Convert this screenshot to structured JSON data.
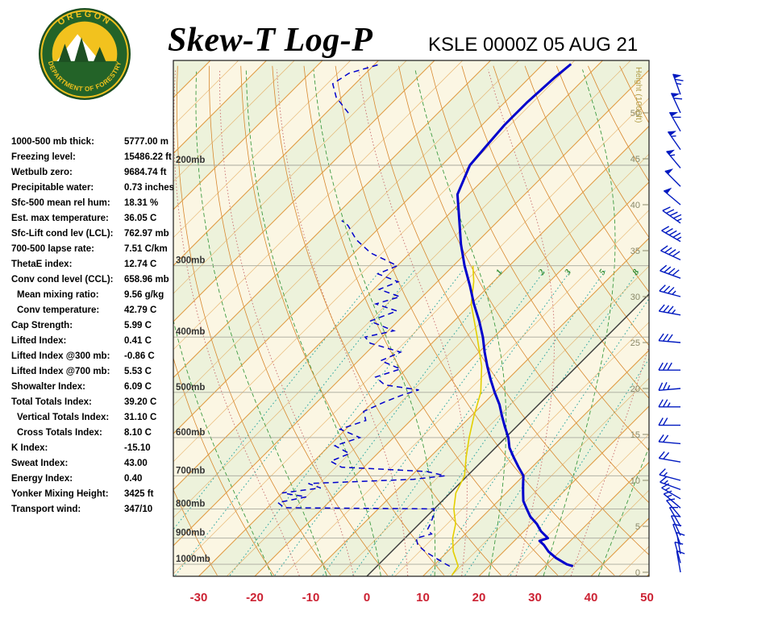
{
  "header": {
    "title": "Skew-T Log-P",
    "station_line": "KSLE 0000Z 05 AUG 21",
    "logo_top": "OREGON",
    "logo_bottom": "DEPARTMENT OF FORESTRY"
  },
  "stats": [
    {
      "label": "1000-500 mb thick:",
      "value": "5777.00 m",
      "indent": false
    },
    {
      "label": "Freezing level:",
      "value": "15486.22 ft",
      "indent": false
    },
    {
      "label": "Wetbulb zero:",
      "value": "9684.74 ft",
      "indent": false
    },
    {
      "label": "Precipitable water:",
      "value": "0.73 inches",
      "indent": false
    },
    {
      "label": "Sfc-500 mean rel hum:",
      "value": "18.31 %",
      "indent": false
    },
    {
      "label": "Est. max temperature:",
      "value": "36.05 C",
      "indent": false
    },
    {
      "label": "Sfc-Lift cond lev (LCL):",
      "value": "762.97 mb",
      "indent": false
    },
    {
      "label": "700-500 lapse rate:",
      "value": "7.51 C/km",
      "indent": false
    },
    {
      "label": "ThetaE index:",
      "value": "12.74 C",
      "indent": false
    },
    {
      "label": "Conv cond level (CCL):",
      "value": "658.96 mb",
      "indent": false
    },
    {
      "label": "Mean mixing ratio:",
      "value": "9.56 g/kg",
      "indent": true
    },
    {
      "label": "Conv temperature:",
      "value": "42.79 C",
      "indent": true
    },
    {
      "label": "Cap Strength:",
      "value": "5.99 C",
      "indent": false
    },
    {
      "label": "Lifted Index:",
      "value": "0.41 C",
      "indent": false
    },
    {
      "label": "Lifted Index @300 mb:",
      "value": "-0.86 C",
      "indent": false
    },
    {
      "label": "Lifted Index @700 mb:",
      "value": "5.53 C",
      "indent": false
    },
    {
      "label": "Showalter Index:",
      "value": "6.09 C",
      "indent": false
    },
    {
      "label": "Total Totals Index:",
      "value": "39.20 C",
      "indent": false
    },
    {
      "label": "Vertical Totals Index:",
      "value": "31.10 C",
      "indent": true
    },
    {
      "label": "Cross Totals Index:",
      "value": "8.10 C",
      "indent": true
    },
    {
      "label": "K Index:",
      "value": "-15.10",
      "indent": false
    },
    {
      "label": "Sweat Index:",
      "value": "43.00",
      "indent": false
    },
    {
      "label": "Energy Index:",
      "value": "0.40",
      "indent": false
    },
    {
      "label": "Yonker Mixing Height:",
      "value": "3425 ft",
      "indent": false
    },
    {
      "label": "Transport wind:",
      "value": "347/10",
      "indent": false
    }
  ],
  "chart_data": {
    "type": "skewt-log-p",
    "units": {
      "pressure": "mb",
      "temperature": "C",
      "height": "1000 ft",
      "wind": "kt"
    },
    "x_axis_ticks_c": [
      -30,
      -20,
      -10,
      0,
      10,
      20,
      30,
      40,
      50
    ],
    "pressure_labels": [
      {
        "p": 200,
        "label": "200mb"
      },
      {
        "p": 300,
        "label": "300mb"
      },
      {
        "p": 400,
        "label": "400mb"
      },
      {
        "p": 500,
        "label": "500mb"
      },
      {
        "p": 600,
        "label": "600mb"
      },
      {
        "p": 700,
        "label": "700mb"
      },
      {
        "p": 800,
        "label": "800mb"
      },
      {
        "p": 900,
        "label": "900mb"
      },
      {
        "p": 1000,
        "label": "1000mb"
      }
    ],
    "height_ticks_kft": [
      50,
      45,
      40,
      35,
      30,
      25,
      20,
      15,
      10,
      5,
      0
    ],
    "height_axis_label": "Height (1000ft)",
    "mixing_ratio_lines_gkg": [
      0.1,
      0.2,
      0.5,
      1,
      2,
      3,
      5,
      8,
      12,
      20
    ],
    "mixing_ratio_labeled": [
      1,
      2,
      3,
      5,
      8
    ],
    "colors": {
      "temperature": "#0000cc",
      "dewpoint": "#0000cc",
      "wetbulb": "#e3cf00",
      "isotherm": "#e09a40",
      "dry_adiabat": "#d8882f",
      "moist_adiabat": "#3d9a40",
      "moist_adiabat_alt": "#cc7777",
      "mixing_ratio": "#2aa5a0",
      "zero_isotherm": "#3a3a3a",
      "band": "#edf2db",
      "background": "#fbf6e3",
      "axis_temp_labels": "#cc2233",
      "wind_barb": "#0019c0",
      "pressure_label": "#333333",
      "height_label": "#8a8868",
      "mixing_label": "#2e8b2e"
    },
    "series": {
      "temperature": {
        "name": "Temperature",
        "points": [
          [
            1008,
            35
          ],
          [
            1000,
            33.5
          ],
          [
            975,
            30.5
          ],
          [
            950,
            28
          ],
          [
            925,
            26
          ],
          [
            910,
            24.5
          ],
          [
            900,
            25.5
          ],
          [
            875,
            23
          ],
          [
            850,
            21
          ],
          [
            825,
            18.5
          ],
          [
            800,
            16.5
          ],
          [
            775,
            14.5
          ],
          [
            750,
            13
          ],
          [
            725,
            11.5
          ],
          [
            700,
            10
          ],
          [
            675,
            7.5
          ],
          [
            650,
            5
          ],
          [
            625,
            2.5
          ],
          [
            600,
            0.5
          ],
          [
            575,
            -2
          ],
          [
            550,
            -4.5
          ],
          [
            525,
            -7
          ],
          [
            500,
            -10
          ],
          [
            475,
            -13
          ],
          [
            450,
            -16
          ],
          [
            425,
            -19
          ],
          [
            400,
            -22
          ],
          [
            375,
            -25.5
          ],
          [
            350,
            -29.5
          ],
          [
            325,
            -33.5
          ],
          [
            300,
            -38
          ],
          [
            275,
            -42.5
          ],
          [
            250,
            -47
          ],
          [
            225,
            -52
          ],
          [
            200,
            -55
          ],
          [
            185,
            -55.5
          ],
          [
            170,
            -56
          ],
          [
            155,
            -56
          ],
          [
            140,
            -55.5
          ],
          [
            133,
            -55
          ]
        ]
      },
      "dewpoint": {
        "name": "Dewpoint",
        "points": [
          [
            1008,
            13
          ],
          [
            1000,
            12
          ],
          [
            975,
            9
          ],
          [
            950,
            6
          ],
          [
            925,
            3.5
          ],
          [
            900,
            2
          ],
          [
            885,
            4
          ],
          [
            870,
            2.5
          ],
          [
            850,
            2
          ],
          [
            820,
            1
          ],
          [
            800,
            0
          ],
          [
            796,
            -27
          ],
          [
            780,
            -29
          ],
          [
            762,
            -25
          ],
          [
            750,
            -30
          ],
          [
            735,
            -24
          ],
          [
            722,
            -27
          ],
          [
            710,
            -9
          ],
          [
            700,
            -4
          ],
          [
            688,
            -8
          ],
          [
            676,
            -24
          ],
          [
            660,
            -27
          ],
          [
            640,
            -25
          ],
          [
            620,
            -29
          ],
          [
            600,
            -26
          ],
          [
            580,
            -31
          ],
          [
            560,
            -28
          ],
          [
            540,
            -30
          ],
          [
            520,
            -28
          ],
          [
            505,
            -26
          ],
          [
            495,
            -24
          ],
          [
            485,
            -31
          ],
          [
            470,
            -34
          ],
          [
            455,
            -31
          ],
          [
            440,
            -36
          ],
          [
            425,
            -34
          ],
          [
            410,
            -41
          ],
          [
            400,
            -43
          ],
          [
            390,
            -39
          ],
          [
            375,
            -45
          ],
          [
            360,
            -42
          ],
          [
            350,
            -47
          ],
          [
            340,
            -44
          ],
          [
            330,
            -49
          ],
          [
            320,
            -47
          ],
          [
            310,
            -52
          ],
          [
            300,
            -50
          ],
          [
            285,
            -57
          ],
          [
            270,
            -62
          ],
          [
            255,
            -66
          ],
          [
            250,
            -68
          ]
        ]
      },
      "dewpoint_upper": {
        "name": "Dewpoint (upper segment)",
        "points": [
          [
            162,
            -86
          ],
          [
            152,
            -91
          ],
          [
            144,
            -94
          ],
          [
            138,
            -93
          ],
          [
            133,
            -89
          ]
        ]
      },
      "wetbulb": {
        "name": "Wet-bulb / parcel trace",
        "points": [
          [
            1045,
            15
          ],
          [
            1008,
            14.5
          ],
          [
            950,
            11
          ],
          [
            900,
            8.5
          ],
          [
            850,
            6.5
          ],
          [
            800,
            3.5
          ],
          [
            750,
            1
          ],
          [
            700,
            -0.5
          ],
          [
            650,
            -3.5
          ],
          [
            600,
            -6.5
          ],
          [
            550,
            -9.5
          ],
          [
            500,
            -12.5
          ],
          [
            450,
            -17
          ],
          [
            400,
            -23
          ],
          [
            350,
            -30
          ],
          [
            320,
            -33.5
          ],
          [
            300,
            -36.5
          ]
        ]
      }
    },
    "wind_barbs": [
      {
        "h_kft": 0,
        "dir": 350,
        "spd": 10
      },
      {
        "h_kft": 1,
        "dir": 345,
        "spd": 10
      },
      {
        "h_kft": 2,
        "dir": 350,
        "spd": 10
      },
      {
        "h_kft": 3,
        "dir": 340,
        "spd": 10
      },
      {
        "h_kft": 4,
        "dir": 335,
        "spd": 10
      },
      {
        "h_kft": 5,
        "dir": 330,
        "spd": 10
      },
      {
        "h_kft": 6,
        "dir": 320,
        "spd": 10
      },
      {
        "h_kft": 7,
        "dir": 310,
        "spd": 15
      },
      {
        "h_kft": 8,
        "dir": 300,
        "spd": 15
      },
      {
        "h_kft": 9,
        "dir": 290,
        "spd": 15
      },
      {
        "h_kft": 10,
        "dir": 285,
        "spd": 15
      },
      {
        "h_kft": 12,
        "dir": 280,
        "spd": 20
      },
      {
        "h_kft": 14,
        "dir": 275,
        "spd": 20
      },
      {
        "h_kft": 16,
        "dir": 270,
        "spd": 20
      },
      {
        "h_kft": 18,
        "dir": 270,
        "spd": 25
      },
      {
        "h_kft": 20,
        "dir": 265,
        "spd": 25
      },
      {
        "h_kft": 22,
        "dir": 270,
        "spd": 30
      },
      {
        "h_kft": 25,
        "dir": 275,
        "spd": 30
      },
      {
        "h_kft": 28,
        "dir": 280,
        "spd": 35
      },
      {
        "h_kft": 30,
        "dir": 285,
        "spd": 35
      },
      {
        "h_kft": 32,
        "dir": 290,
        "spd": 40
      },
      {
        "h_kft": 34,
        "dir": 295,
        "spd": 40
      },
      {
        "h_kft": 36,
        "dir": 300,
        "spd": 45
      },
      {
        "h_kft": 38,
        "dir": 305,
        "spd": 45
      },
      {
        "h_kft": 40,
        "dir": 310,
        "spd": 50
      },
      {
        "h_kft": 42,
        "dir": 315,
        "spd": 50
      },
      {
        "h_kft": 44,
        "dir": 320,
        "spd": 55
      },
      {
        "h_kft": 46,
        "dir": 325,
        "spd": 55
      },
      {
        "h_kft": 48,
        "dir": 330,
        "spd": 60
      },
      {
        "h_kft": 50,
        "dir": 335,
        "spd": 60
      },
      {
        "h_kft": 52,
        "dir": 340,
        "spd": 65
      }
    ]
  }
}
